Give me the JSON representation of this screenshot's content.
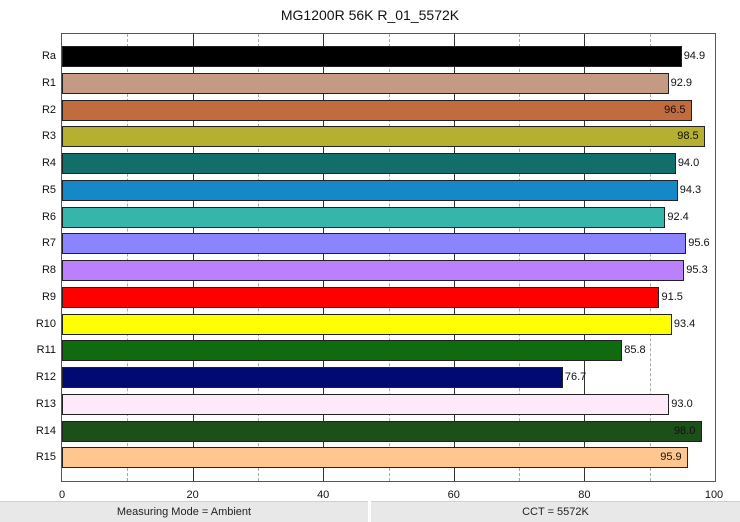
{
  "chart_data": {
    "type": "bar",
    "orientation": "horizontal",
    "title": "MG1200R 56K R_01_5572K",
    "xlabel": "",
    "ylabel": "",
    "xlim": [
      0,
      100
    ],
    "x_ticks": [
      0,
      20,
      40,
      60,
      80,
      100
    ],
    "grid": {
      "major_every": 20,
      "minor_every": 10,
      "minor_dashed": true
    },
    "legend": null,
    "categories": [
      "Ra",
      "R1",
      "R2",
      "R3",
      "R4",
      "R5",
      "R6",
      "R7",
      "R8",
      "R9",
      "R10",
      "R11",
      "R12",
      "R13",
      "R14",
      "R15"
    ],
    "values": [
      94.9,
      92.9,
      96.5,
      98.5,
      94.0,
      94.3,
      92.4,
      95.6,
      95.3,
      91.5,
      93.4,
      85.8,
      76.7,
      93.0,
      98.0,
      95.9
    ],
    "value_labels": [
      "94.9",
      "92.9",
      "96.5",
      "98.5",
      "94.0",
      "94.3",
      "92.4",
      "95.6",
      "95.3",
      "91.5",
      "93.4",
      "85.8",
      "76.7",
      "93.0",
      "98.0",
      "95.9"
    ],
    "colors": [
      "#000000",
      "#c49a85",
      "#c06c3e",
      "#b5b02f",
      "#126e6a",
      "#1589c8",
      "#36b5aa",
      "#8a84fe",
      "#bb80fc",
      "#ff0000",
      "#ffff00",
      "#106b0e",
      "#000a72",
      "#fee9fb",
      "#1d5019",
      "#ffc68f"
    ]
  },
  "footer": {
    "measuring_mode": "Measuring Mode = Ambient",
    "cct": "CCT = 5572K"
  }
}
